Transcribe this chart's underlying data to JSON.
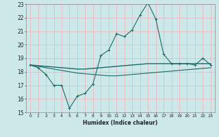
{
  "xlabel": "Humidex (Indice chaleur)",
  "xlim": [
    -0.5,
    23.5
  ],
  "ylim": [
    15,
    23
  ],
  "yticks": [
    15,
    16,
    17,
    18,
    19,
    20,
    21,
    22,
    23
  ],
  "xticks": [
    0,
    1,
    2,
    3,
    4,
    5,
    6,
    7,
    8,
    9,
    10,
    11,
    12,
    13,
    14,
    15,
    16,
    17,
    18,
    19,
    20,
    21,
    22,
    23
  ],
  "bg_color": "#cce8e8",
  "grid_color": "#e8b8c0",
  "line_color": "#1a6868",
  "line1_y": [
    18.5,
    18.3,
    17.8,
    17.0,
    17.0,
    15.3,
    16.2,
    16.4,
    17.1,
    19.2,
    19.6,
    20.8,
    20.6,
    21.1,
    22.2,
    23.1,
    21.9,
    19.3,
    18.6,
    18.6,
    18.6,
    18.5,
    19.0,
    18.5
  ],
  "line2_y": [
    18.5,
    18.45,
    18.4,
    18.35,
    18.3,
    18.25,
    18.2,
    18.2,
    18.25,
    18.3,
    18.35,
    18.4,
    18.45,
    18.5,
    18.55,
    18.6,
    18.6,
    18.6,
    18.6,
    18.6,
    18.6,
    18.6,
    18.6,
    18.6
  ],
  "line3_y": [
    18.5,
    18.4,
    18.3,
    18.2,
    18.1,
    18.0,
    17.9,
    17.85,
    17.8,
    17.75,
    17.7,
    17.7,
    17.75,
    17.8,
    17.85,
    17.9,
    17.95,
    18.0,
    18.05,
    18.1,
    18.15,
    18.2,
    18.25,
    18.3
  ]
}
